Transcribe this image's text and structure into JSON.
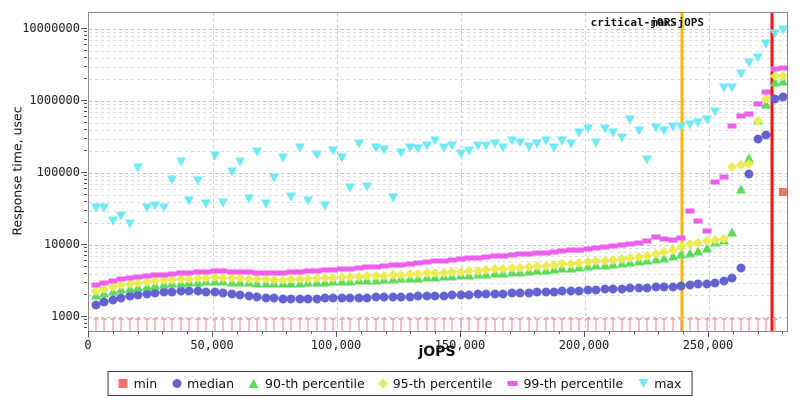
{
  "axes": {
    "x_title": "jOPS",
    "y_title": "Response time, usec",
    "x_ticks": [
      {
        "value": 0,
        "label": "0"
      },
      {
        "value": 50000,
        "label": "50,000"
      },
      {
        "value": 100000,
        "label": "100,000"
      },
      {
        "value": 150000,
        "label": "150,000"
      },
      {
        "value": 200000,
        "label": "200,000"
      },
      {
        "value": 250000,
        "label": "250,000"
      }
    ],
    "y_ticks": [
      {
        "value": 1000,
        "label": "1000"
      },
      {
        "value": 10000,
        "label": "10000"
      },
      {
        "value": 100000,
        "label": "100000"
      },
      {
        "value": 1000000,
        "label": "1000000"
      },
      {
        "value": 10000000,
        "label": "10000000"
      }
    ]
  },
  "annotations": {
    "critical": {
      "label": "critical-jOPS",
      "jops": 239000,
      "color": "#ffb400"
    },
    "max": {
      "label": "max-jOPS",
      "jops": 275400,
      "color": "#ff1111"
    }
  },
  "legend": {
    "items": [
      {
        "label": "min",
        "shape": "square",
        "color": "#f7726e"
      },
      {
        "label": "median",
        "shape": "circle",
        "color": "#6262d0"
      },
      {
        "label": "90-th percentile",
        "shape": "triangle-up",
        "color": "#5adc5a"
      },
      {
        "label": "95-th percentile",
        "shape": "diamond",
        "color": "#ebeb52"
      },
      {
        "label": "99-th percentile",
        "shape": "hbar",
        "color": "#ee5dee"
      },
      {
        "label": "max",
        "shape": "triangle-down",
        "color": "#6fe9f3"
      }
    ]
  },
  "style": {
    "grid_major_color": "#c2c2c2",
    "grid_minor_color": "#dedede",
    "vgrid_color": "#cccccc",
    "min_whisker_stem": "#f27d7d",
    "min_whisker_cap": "#f8abab"
  },
  "chart_data": {
    "type": "scatter",
    "x_axis": "jOPS",
    "y_axis": "Response time, usec",
    "y_scale": "log",
    "xlim": [
      0,
      281450
    ],
    "ylim": [
      1000,
      10000000
    ],
    "note": "min values below 1000 are clipped at the bottom axis as whisker marks",
    "x_jops": [
      2820,
      6240,
      9660,
      13080,
      16500,
      19920,
      23340,
      26760,
      30180,
      33600,
      37020,
      40440,
      43860,
      47280,
      50700,
      54120,
      57540,
      60960,
      64380,
      67800,
      71220,
      74640,
      78060,
      81480,
      84900,
      88320,
      91740,
      95160,
      98580,
      102000,
      105420,
      108840,
      112260,
      115680,
      119100,
      122520,
      125940,
      129360,
      132780,
      136200,
      139620,
      143040,
      146460,
      149880,
      153300,
      156720,
      160140,
      163560,
      166980,
      170400,
      173820,
      177240,
      180660,
      184080,
      187500,
      190920,
      194340,
      197760,
      201180,
      204600,
      208020,
      211440,
      214860,
      218280,
      221700,
      225120,
      228540,
      231960,
      235380,
      238800,
      242220,
      245640,
      249060,
      252480,
      255900,
      259320,
      262740,
      266160,
      269580,
      273000,
      276420,
      279840
    ],
    "series": [
      {
        "name": "min",
        "shape": "square",
        "color": "#f7726e",
        "values": [
          900,
          900,
          900,
          900,
          900,
          900,
          900,
          900,
          900,
          900,
          900,
          900,
          900,
          900,
          900,
          900,
          900,
          900,
          900,
          900,
          900,
          900,
          900,
          900,
          900,
          900,
          900,
          900,
          900,
          900,
          900,
          900,
          900,
          900,
          900,
          900,
          900,
          900,
          900,
          900,
          900,
          900,
          900,
          900,
          900,
          900,
          900,
          900,
          900,
          900,
          900,
          900,
          900,
          900,
          900,
          900,
          900,
          900,
          900,
          900,
          900,
          900,
          900,
          900,
          900,
          900,
          900,
          900,
          900,
          900,
          900,
          900,
          900,
          900,
          900,
          900,
          900,
          900,
          900,
          900,
          900,
          55000
        ]
      },
      {
        "name": "median",
        "shape": "circle",
        "color": "#6262d0",
        "values": [
          1470,
          1610,
          1740,
          1860,
          1950,
          2030,
          2100,
          2160,
          2220,
          2260,
          2290,
          2300,
          2290,
          2260,
          2220,
          2170,
          2100,
          2030,
          1960,
          1900,
          1850,
          1810,
          1790,
          1780,
          1780,
          1790,
          1800,
          1810,
          1820,
          1830,
          1840,
          1850,
          1860,
          1870,
          1880,
          1900,
          1910,
          1920,
          1940,
          1950,
          1960,
          1980,
          2000,
          2020,
          2040,
          2060,
          2080,
          2100,
          2120,
          2140,
          2160,
          2180,
          2200,
          2230,
          2250,
          2280,
          2300,
          2330,
          2360,
          2380,
          2410,
          2440,
          2470,
          2500,
          2530,
          2560,
          2590,
          2620,
          2650,
          2700,
          2800,
          2870,
          2900,
          2960,
          3140,
          3500,
          4790,
          97000,
          300000,
          340000,
          1080000,
          1150000
        ]
      },
      {
        "name": "90-th percentile",
        "shape": "triangle-up",
        "color": "#5adc5a",
        "values": [
          2020,
          2180,
          2320,
          2450,
          2560,
          2650,
          2730,
          2800,
          2870,
          2930,
          2980,
          3030,
          3080,
          3120,
          3150,
          3140,
          3110,
          3070,
          3030,
          2990,
          2950,
          2930,
          2950,
          2980,
          3010,
          3040,
          3070,
          3100,
          3130,
          3160,
          3200,
          3230,
          3270,
          3310,
          3350,
          3390,
          3430,
          3480,
          3520,
          3570,
          3620,
          3670,
          3730,
          3790,
          3850,
          3910,
          3980,
          4050,
          4120,
          4200,
          4280,
          4360,
          4450,
          4540,
          4640,
          4740,
          4850,
          4960,
          5080,
          5210,
          5350,
          5500,
          5660,
          5830,
          6010,
          6200,
          6400,
          6700,
          7100,
          7500,
          7800,
          8300,
          9200,
          11000,
          11700,
          15200,
          60000,
          160000,
          540000,
          900000,
          1850000,
          1900000
        ]
      },
      {
        "name": "95-th percentile",
        "shape": "diamond",
        "color": "#ebeb52",
        "values": [
          2300,
          2470,
          2620,
          2760,
          2880,
          2980,
          3070,
          3150,
          3230,
          3290,
          3350,
          3410,
          3460,
          3500,
          3540,
          3530,
          3490,
          3450,
          3400,
          3360,
          3320,
          3290,
          3310,
          3340,
          3380,
          3420,
          3450,
          3490,
          3520,
          3560,
          3600,
          3640,
          3680,
          3730,
          3770,
          3820,
          3870,
          3920,
          3970,
          4030,
          4080,
          4140,
          4200,
          4270,
          4340,
          4410,
          4490,
          4570,
          4650,
          4740,
          4830,
          4930,
          5030,
          5140,
          5250,
          5370,
          5500,
          5630,
          5770,
          5920,
          6080,
          6250,
          6430,
          6620,
          6820,
          7030,
          7400,
          7900,
          8600,
          9500,
          10200,
          10800,
          11200,
          11800,
          12100,
          120000,
          128000,
          135000,
          520000,
          1050000,
          2200000,
          2250000
        ]
      },
      {
        "name": "99-th percentile",
        "shape": "hbar",
        "color": "#ee5dee",
        "values": [
          2790,
          2990,
          3170,
          3330,
          3470,
          3590,
          3700,
          3800,
          3890,
          3970,
          4050,
          4120,
          4190,
          4250,
          4310,
          4290,
          4250,
          4200,
          4160,
          4120,
          4090,
          4070,
          4110,
          4160,
          4220,
          4290,
          4360,
          4440,
          4520,
          4610,
          4700,
          4800,
          4900,
          5010,
          5120,
          5240,
          5360,
          5490,
          5620,
          5760,
          5900,
          6050,
          6200,
          6350,
          6500,
          6650,
          6800,
          6950,
          7100,
          7250,
          7400,
          7550,
          7700,
          7850,
          8000,
          8200,
          8400,
          8600,
          8800,
          9000,
          9300,
          9600,
          9900,
          10300,
          10700,
          11200,
          12800,
          12100,
          11800,
          12500,
          29500,
          21500,
          15700,
          75000,
          87000,
          450000,
          620000,
          650000,
          900000,
          1350000,
          2800000,
          2900000
        ]
      },
      {
        "name": "max",
        "shape": "triangle-down",
        "color": "#6fe9f3",
        "values": [
          33000,
          33000,
          21500,
          25000,
          19700,
          118000,
          33000,
          35000,
          33000,
          80000,
          142000,
          41000,
          78000,
          37000,
          172000,
          38000,
          103000,
          142000,
          44000,
          195000,
          37000,
          85000,
          160000,
          46000,
          223000,
          41000,
          177000,
          35000,
          200000,
          160000,
          62000,
          250000,
          64000,
          220000,
          210000,
          45000,
          190000,
          220000,
          215000,
          235000,
          275000,
          220000,
          235000,
          185000,
          200000,
          240000,
          235000,
          250000,
          220000,
          280000,
          260000,
          230000,
          250000,
          280000,
          220000,
          280000,
          250000,
          360000,
          410000,
          260000,
          410000,
          360000,
          310000,
          540000,
          380000,
          150000,
          420000,
          380000,
          440000,
          430000,
          470000,
          500000,
          550000,
          700000,
          1500000,
          1500000,
          2400000,
          3400000,
          3900000,
          6200000,
          8600000,
          9700000
        ]
      }
    ]
  }
}
